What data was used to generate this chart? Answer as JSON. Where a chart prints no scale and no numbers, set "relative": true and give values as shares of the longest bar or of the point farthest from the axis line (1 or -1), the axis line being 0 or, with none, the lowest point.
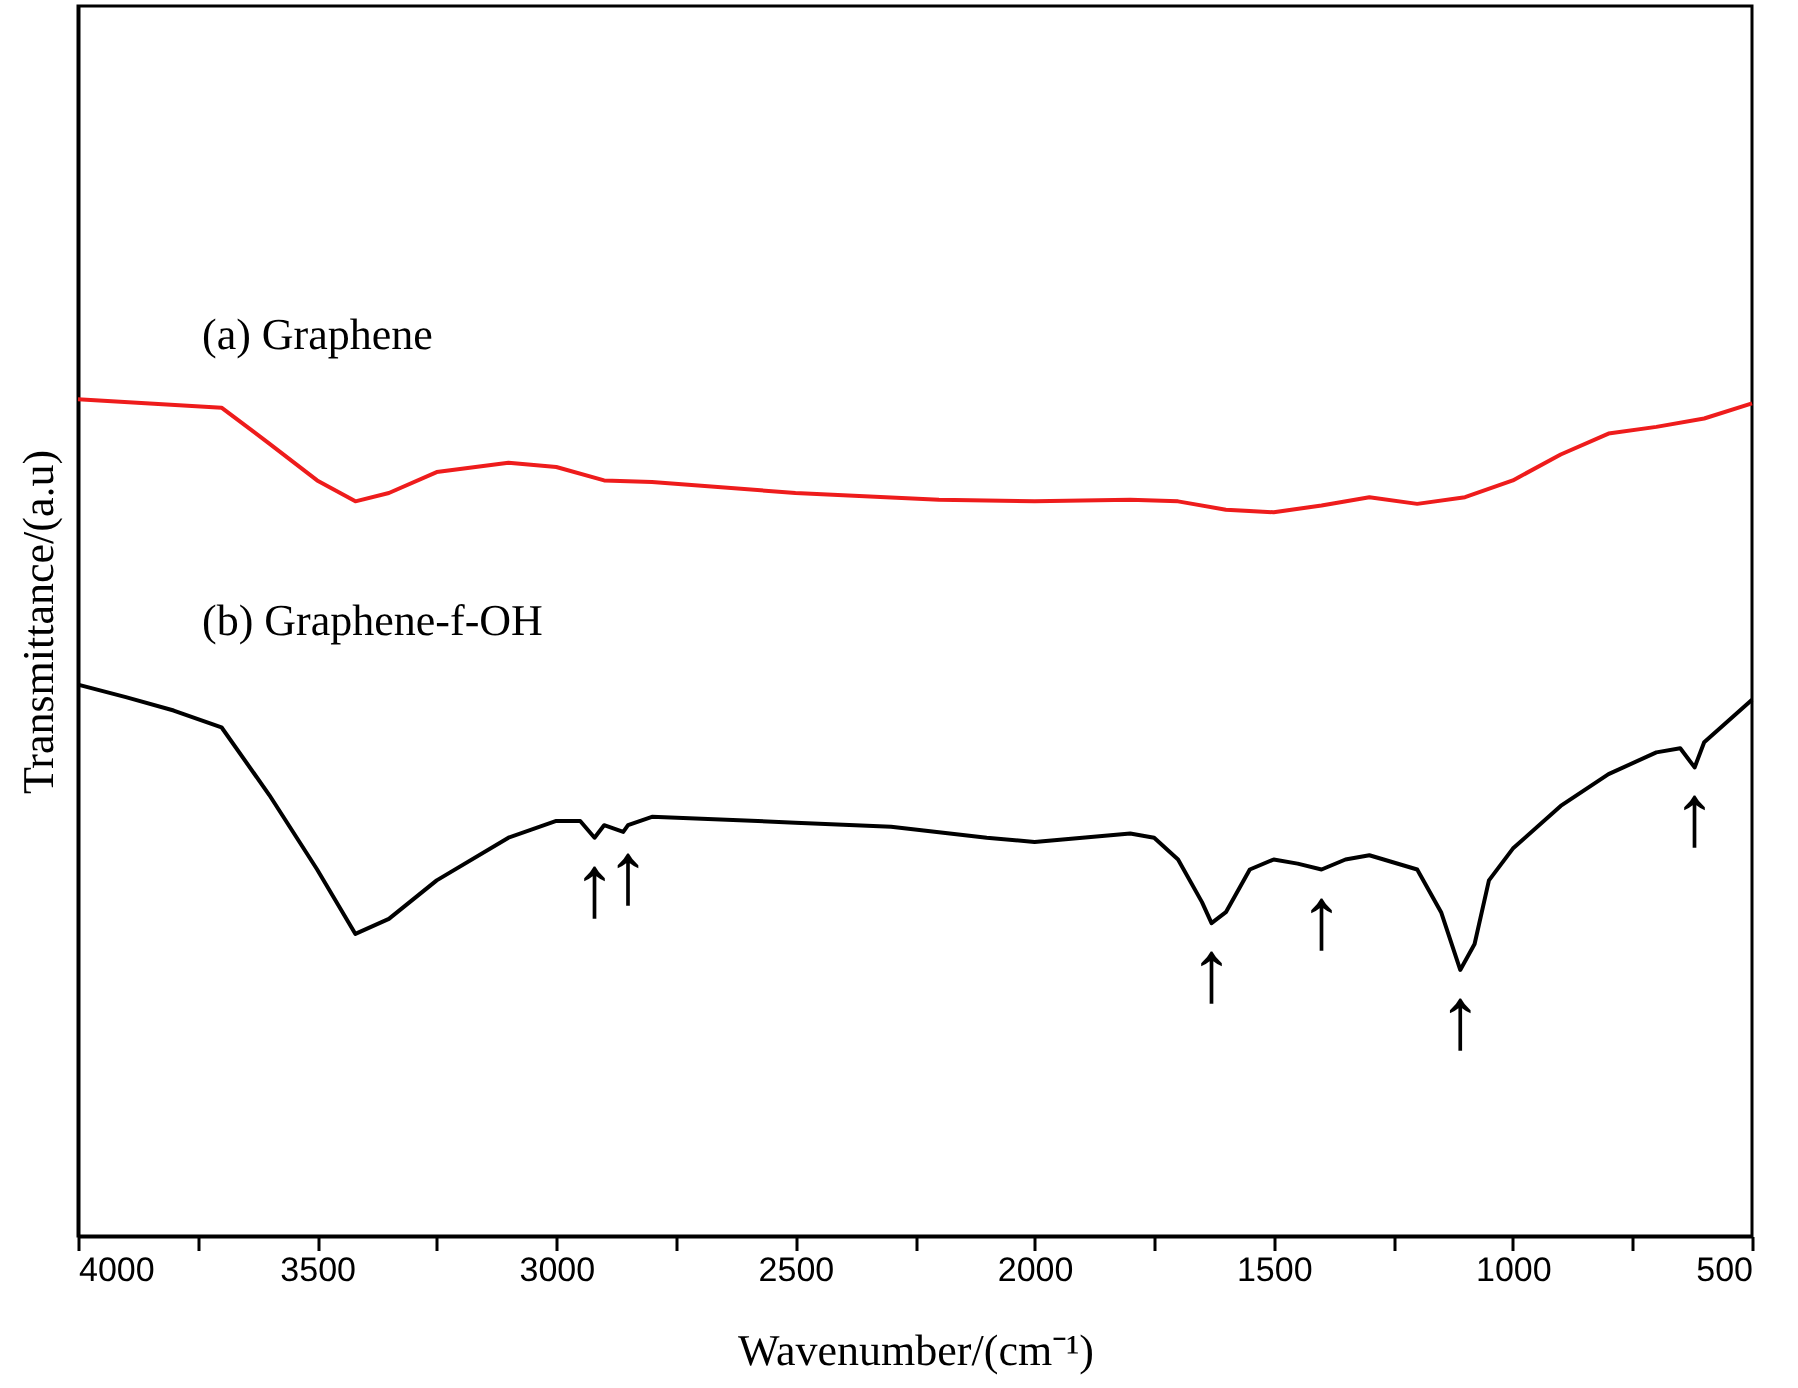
{
  "chart_data": {
    "type": "line",
    "relative": true,
    "xlabel": "Wavenumber/(cm⁻¹)",
    "ylabel": "Transmittance/(a.u)",
    "xlim": [
      4000,
      500
    ],
    "xticks": [
      4000,
      {
        "value": 3750,
        "label": null
      },
      3500,
      {
        "value": 3250,
        "label": null
      },
      3000,
      {
        "value": 2750,
        "label": null
      },
      2500,
      {
        "value": 2250,
        "label": null
      },
      2000,
      {
        "value": 1750,
        "label": null
      },
      1500,
      {
        "value": 1250,
        "label": null
      },
      1000,
      {
        "value": 750,
        "label": null
      },
      500
    ],
    "grid": false,
    "series": [
      {
        "name": "(a) Graphene",
        "color": "#ee1c1c",
        "x": [
          4000,
          3700,
          3600,
          3500,
          3420,
          3350,
          3250,
          3100,
          3000,
          2900,
          2800,
          2500,
          2200,
          2000,
          1800,
          1700,
          1600,
          1500,
          1400,
          1300,
          1200,
          1100,
          1000,
          900,
          800,
          700,
          600,
          500
        ],
        "values": [
          1.0,
          0.99,
          0.947,
          0.903,
          0.878,
          0.888,
          0.913,
          0.924,
          0.919,
          0.903,
          0.901,
          0.888,
          0.88,
          0.878,
          0.88,
          0.878,
          0.868,
          0.865,
          0.873,
          0.883,
          0.875,
          0.883,
          0.903,
          0.934,
          0.959,
          0.967,
          0.977,
          0.995
        ]
      },
      {
        "name": "(b) Graphene-f-OH",
        "color": "#000000",
        "x": [
          4000,
          3900,
          3800,
          3700,
          3600,
          3500,
          3420,
          3350,
          3250,
          3100,
          3000,
          2950,
          2920,
          2900,
          2860,
          2850,
          2800,
          2500,
          2300,
          2100,
          2000,
          1900,
          1800,
          1750,
          1700,
          1650,
          1630,
          1600,
          1550,
          1500,
          1450,
          1400,
          1350,
          1300,
          1200,
          1150,
          1110,
          1080,
          1050,
          1000,
          900,
          800,
          700,
          650,
          620,
          600,
          500
        ],
        "values": [
          0.659,
          0.644,
          0.628,
          0.608,
          0.527,
          0.438,
          0.361,
          0.379,
          0.425,
          0.476,
          0.496,
          0.496,
          0.476,
          0.491,
          0.483,
          0.491,
          0.501,
          0.494,
          0.489,
          0.476,
          0.471,
          0.476,
          0.481,
          0.476,
          0.45,
          0.399,
          0.374,
          0.387,
          0.438,
          0.45,
          0.445,
          0.438,
          0.45,
          0.455,
          0.438,
          0.387,
          0.318,
          0.349,
          0.425,
          0.463,
          0.514,
          0.552,
          0.578,
          0.583,
          0.56,
          0.59,
          0.641
        ]
      }
    ],
    "annotations": [
      {
        "text": "↑",
        "x": 2920,
        "y": 0.476
      },
      {
        "text": "↑",
        "x": 2850,
        "y": 0.491
      },
      {
        "text": "↑",
        "x": 1630,
        "y": 0.374
      },
      {
        "text": "↑",
        "x": 1400,
        "y": 0.438
      },
      {
        "text": "↑",
        "x": 1110,
        "y": 0.318
      },
      {
        "text": "↑",
        "x": 620,
        "y": 0.56
      }
    ]
  }
}
